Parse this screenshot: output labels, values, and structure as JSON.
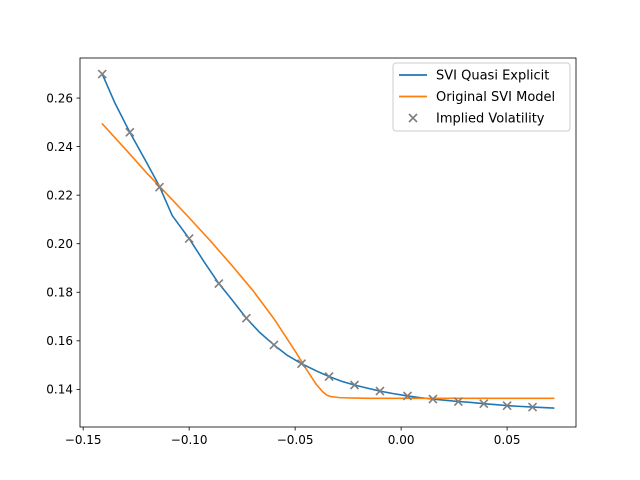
{
  "chart_data": {
    "type": "line",
    "title": "",
    "xlabel": "",
    "ylabel": "",
    "xlim": [
      -0.1515,
      0.0825
    ],
    "ylim": [
      0.1245,
      0.2765
    ],
    "grid": false,
    "legend_position": "upper right",
    "x_ticks": [
      -0.15,
      -0.1,
      -0.05,
      0.0,
      0.05
    ],
    "x_tick_labels": [
      "−0.15",
      "−0.10",
      "−0.05",
      "0.00",
      "0.05"
    ],
    "y_ticks": [
      0.14,
      0.16,
      0.18,
      0.2,
      0.22,
      0.24,
      0.26
    ],
    "y_tick_labels": [
      "0.14",
      "0.16",
      "0.18",
      "0.20",
      "0.22",
      "0.24",
      "0.26"
    ],
    "series": [
      {
        "name": "SVI Quasi Explicit",
        "kind": "line",
        "color": "#1f77b4",
        "x": [
          -0.141,
          -0.135,
          -0.128,
          -0.12,
          -0.114,
          -0.108,
          -0.1,
          -0.093,
          -0.086,
          -0.08,
          -0.073,
          -0.067,
          -0.06,
          -0.054,
          -0.047,
          -0.04,
          -0.034,
          -0.028,
          -0.022,
          -0.016,
          -0.01,
          -0.004,
          0.003,
          0.009,
          0.015,
          0.021,
          0.027,
          0.033,
          0.039,
          0.045,
          0.05,
          0.056,
          0.062,
          0.067,
          0.072
        ],
        "y": [
          0.2699,
          0.2579,
          0.2459,
          0.2333,
          0.2236,
          0.2116,
          0.2021,
          0.1926,
          0.1836,
          0.1771,
          0.1693,
          0.1637,
          0.1583,
          0.1542,
          0.1506,
          0.1476,
          0.1453,
          0.1433,
          0.1418,
          0.1405,
          0.1393,
          0.1383,
          0.1373,
          0.1366,
          0.136,
          0.1355,
          0.135,
          0.1346,
          0.1341,
          0.1337,
          0.1333,
          0.133,
          0.1327,
          0.1325,
          0.1323
        ]
      },
      {
        "name": "Original SVI Model",
        "kind": "line",
        "color": "#ff7f0e",
        "x": [
          -0.141,
          -0.13,
          -0.12,
          -0.11,
          -0.1,
          -0.09,
          -0.08,
          -0.07,
          -0.06,
          -0.05,
          -0.045,
          -0.04,
          -0.037,
          -0.035,
          -0.033,
          -0.031,
          -0.029,
          -0.026,
          -0.022,
          -0.015,
          -0.005,
          0.01,
          0.03,
          0.05,
          0.072
        ],
        "y": [
          0.2494,
          0.2389,
          0.2291,
          0.22,
          0.2107,
          0.2012,
          0.1912,
          0.1808,
          0.1691,
          0.1558,
          0.1487,
          0.142,
          0.139,
          0.1376,
          0.137,
          0.1368,
          0.1366,
          0.1365,
          0.1364,
          0.1363,
          0.1363,
          0.1363,
          0.1363,
          0.1363,
          0.1363
        ]
      },
      {
        "name": "Implied Volatility",
        "kind": "scatter",
        "marker": "x",
        "color": "#7f7f7f",
        "x": [
          -0.141,
          -0.128,
          -0.114,
          -0.1,
          -0.086,
          -0.073,
          -0.06,
          -0.047,
          -0.034,
          -0.022,
          -0.01,
          0.003,
          0.015,
          0.027,
          0.039,
          0.05,
          0.062
        ],
        "y": [
          0.2699,
          0.2459,
          0.2233,
          0.2021,
          0.1836,
          0.1693,
          0.1583,
          0.1506,
          0.1453,
          0.1418,
          0.1393,
          0.1373,
          0.136,
          0.135,
          0.1341,
          0.1333,
          0.1327
        ]
      }
    ]
  }
}
